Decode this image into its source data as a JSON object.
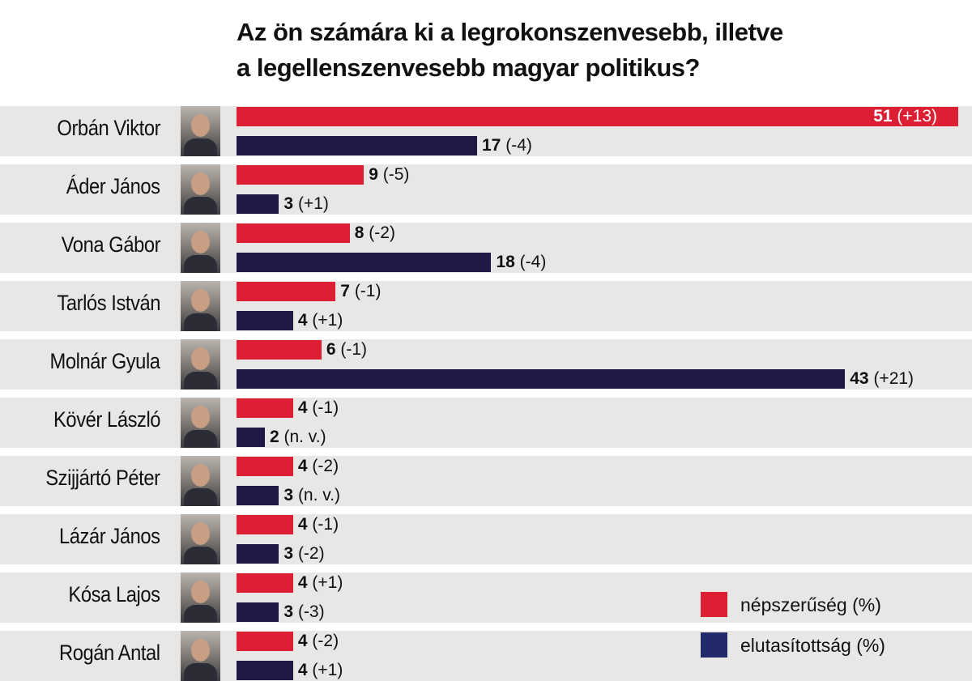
{
  "title_line1": "Az ön számára ki a legrokonszenvesebb, illetve",
  "title_line2": "a legellenszenvesebb magyar politikus?",
  "colors": {
    "popularity": "#dc1f33",
    "rejection": "#1f1a45",
    "legend_rejection": "#232a6b",
    "row_background": "#e8e7e6"
  },
  "legend": [
    {
      "label": "népszerűség (%)",
      "color": "#dc1f33"
    },
    {
      "label": "elutasítottság (%)",
      "color": "#232a6b"
    }
  ],
  "chart_data": {
    "type": "bar",
    "orientation": "horizontal",
    "title": "Az ön számára ki a legrokonszenvesebb, illetve a legellenszenvesebb magyar politikus?",
    "categories": [
      "Orbán Viktor",
      "Áder János",
      "Vona Gábor",
      "Tarlós István",
      "Molnár Gyula",
      "Kövér László",
      "Szijjártó Péter",
      "Lázár János",
      "Kósa Lajos",
      "Rogán Antal"
    ],
    "series": [
      {
        "name": "népszerűség (%)",
        "values": [
          51,
          9,
          8,
          7,
          6,
          4,
          4,
          4,
          4,
          4
        ],
        "changes": [
          "(+13)",
          "(-5)",
          "(-2)",
          "(-1)",
          "(-1)",
          "(-1)",
          "(-2)",
          "(-1)",
          "(+1)",
          "(-2)"
        ]
      },
      {
        "name": "elutasítottság (%)",
        "values": [
          17,
          3,
          18,
          4,
          43,
          2,
          3,
          3,
          3,
          4
        ],
        "changes": [
          "(-4)",
          "(+1)",
          "(-4)",
          "(+1)",
          "(+21)",
          "(n. v.)",
          "(n. v.)",
          "(-2)",
          "(-3)",
          "(+1)"
        ]
      }
    ],
    "legend_position": "bottom-right",
    "grid": false
  }
}
